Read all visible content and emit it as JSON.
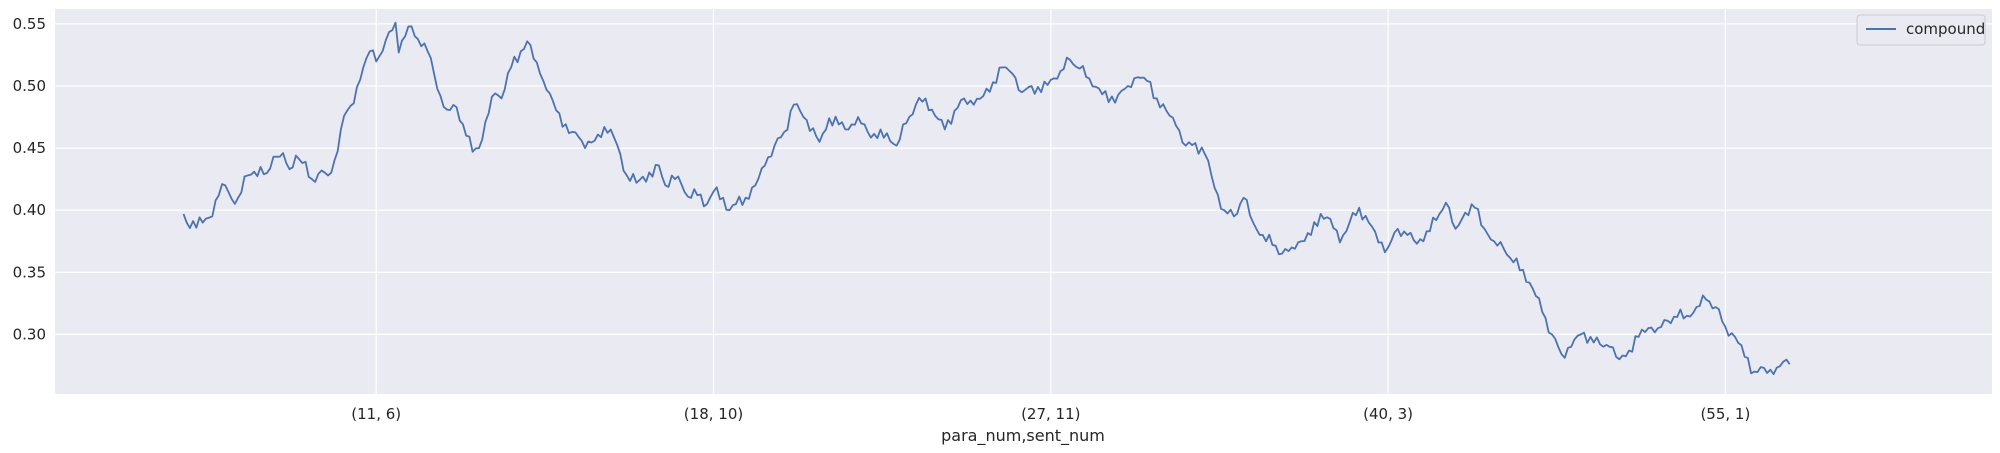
{
  "chart_data": {
    "type": "line",
    "xlabel": "para_num,sent_num",
    "ylabel": "",
    "xlim": [
      -40,
      563
    ],
    "ylim": [
      0.252,
      0.562
    ],
    "x_ticks": [
      {
        "pos": 60,
        "label": "(11, 6)"
      },
      {
        "pos": 165,
        "label": "(18, 10)"
      },
      {
        "pos": 270,
        "label": "(27, 11)"
      },
      {
        "pos": 375,
        "label": "(40, 3)"
      },
      {
        "pos": 480,
        "label": "(55, 1)"
      }
    ],
    "y_ticks": [
      0.3,
      0.35,
      0.4,
      0.45,
      0.5,
      0.55
    ],
    "y_tick_labels": [
      "0.30",
      "0.35",
      "0.40",
      "0.45",
      "0.50",
      "0.55"
    ],
    "grid": true,
    "legend_position": "top-right",
    "colors": {
      "series": "#4c72b0",
      "background": "#eaeaf2",
      "grid": "#ffffff"
    },
    "series": [
      {
        "name": "compound",
        "keypoints": [
          [
            0,
            0.397
          ],
          [
            1,
            0.39
          ],
          [
            6,
            0.39
          ],
          [
            8,
            0.394
          ],
          [
            11,
            0.412
          ],
          [
            13,
            0.42
          ],
          [
            15,
            0.409
          ],
          [
            17,
            0.41
          ],
          [
            20,
            0.428
          ],
          [
            22,
            0.431
          ],
          [
            26,
            0.43
          ],
          [
            28,
            0.443
          ],
          [
            31,
            0.446
          ],
          [
            33,
            0.433
          ],
          [
            35,
            0.444
          ],
          [
            37,
            0.438
          ],
          [
            40,
            0.425
          ],
          [
            43,
            0.432
          ],
          [
            45,
            0.428
          ],
          [
            47,
            0.44
          ],
          [
            50,
            0.476
          ],
          [
            52,
            0.484
          ],
          [
            55,
            0.505
          ],
          [
            58,
            0.528
          ],
          [
            61,
            0.524
          ],
          [
            63,
            0.537
          ],
          [
            66,
            0.551
          ],
          [
            67,
            0.527
          ],
          [
            69,
            0.54
          ],
          [
            71,
            0.548
          ],
          [
            74,
            0.532
          ],
          [
            76,
            0.528
          ],
          [
            78,
            0.51
          ],
          [
            80,
            0.492
          ],
          [
            82,
            0.481
          ],
          [
            85,
            0.483
          ],
          [
            88,
            0.46
          ],
          [
            90,
            0.447
          ],
          [
            92,
            0.45
          ],
          [
            95,
            0.478
          ],
          [
            97,
            0.494
          ],
          [
            99,
            0.49
          ],
          [
            102,
            0.515
          ],
          [
            105,
            0.528
          ],
          [
            107,
            0.536
          ],
          [
            109,
            0.522
          ],
          [
            111,
            0.51
          ],
          [
            113,
            0.497
          ],
          [
            115,
            0.488
          ],
          [
            117,
            0.478
          ],
          [
            120,
            0.462
          ],
          [
            123,
            0.459
          ],
          [
            125,
            0.45
          ],
          [
            128,
            0.456
          ],
          [
            131,
            0.467
          ],
          [
            133,
            0.465
          ],
          [
            136,
            0.445
          ],
          [
            138,
            0.428
          ],
          [
            141,
            0.422
          ],
          [
            143,
            0.427
          ],
          [
            146,
            0.427
          ],
          [
            148,
            0.436
          ],
          [
            150,
            0.42
          ],
          [
            153,
            0.425
          ],
          [
            155,
            0.421
          ],
          [
            157,
            0.411
          ],
          [
            160,
            0.412
          ],
          [
            163,
            0.405
          ],
          [
            165,
            0.415
          ],
          [
            168,
            0.41
          ],
          [
            170,
            0.4
          ],
          [
            172,
            0.405
          ],
          [
            175,
            0.41
          ],
          [
            178,
            0.42
          ],
          [
            181,
            0.436
          ],
          [
            184,
            0.452
          ],
          [
            187,
            0.463
          ],
          [
            190,
            0.485
          ],
          [
            193,
            0.475
          ],
          [
            196,
            0.466
          ],
          [
            198,
            0.455
          ],
          [
            201,
            0.474
          ],
          [
            204,
            0.469
          ],
          [
            207,
            0.465
          ],
          [
            210,
            0.475
          ],
          [
            213,
            0.463
          ],
          [
            216,
            0.458
          ],
          [
            219,
            0.462
          ],
          [
            222,
            0.452
          ],
          [
            225,
            0.47
          ],
          [
            228,
            0.485
          ],
          [
            231,
            0.49
          ],
          [
            234,
            0.476
          ],
          [
            237,
            0.465
          ],
          [
            240,
            0.48
          ],
          [
            243,
            0.49
          ],
          [
            246,
            0.485
          ],
          [
            249,
            0.492
          ],
          [
            252,
            0.503
          ],
          [
            255,
            0.515
          ],
          [
            258,
            0.51
          ],
          [
            261,
            0.495
          ],
          [
            264,
            0.5
          ],
          [
            267,
            0.495
          ],
          [
            270,
            0.505
          ],
          [
            273,
            0.512
          ],
          [
            276,
            0.521
          ],
          [
            279,
            0.514
          ],
          [
            282,
            0.506
          ],
          [
            285,
            0.498
          ],
          [
            288,
            0.487
          ],
          [
            291,
            0.493
          ],
          [
            294,
            0.5
          ],
          [
            297,
            0.507
          ],
          [
            300,
            0.504
          ],
          [
            303,
            0.49
          ],
          [
            306,
            0.48
          ],
          [
            309,
            0.468
          ],
          [
            312,
            0.452
          ],
          [
            315,
            0.454
          ],
          [
            318,
            0.445
          ],
          [
            321,
            0.418
          ],
          [
            324,
            0.4
          ],
          [
            327,
            0.395
          ],
          [
            330,
            0.41
          ],
          [
            333,
            0.39
          ],
          [
            336,
            0.38
          ],
          [
            339,
            0.372
          ],
          [
            342,
            0.365
          ],
          [
            345,
            0.37
          ],
          [
            348,
            0.375
          ],
          [
            351,
            0.38
          ],
          [
            354,
            0.397
          ],
          [
            357,
            0.393
          ],
          [
            360,
            0.374
          ],
          [
            363,
            0.39
          ],
          [
            366,
            0.402
          ],
          [
            369,
            0.39
          ],
          [
            372,
            0.374
          ],
          [
            375,
            0.37
          ],
          [
            378,
            0.385
          ],
          [
            381,
            0.38
          ],
          [
            384,
            0.373
          ],
          [
            387,
            0.383
          ],
          [
            390,
            0.392
          ],
          [
            393,
            0.406
          ],
          [
            396,
            0.385
          ],
          [
            399,
            0.398
          ],
          [
            402,
            0.402
          ],
          [
            405,
            0.385
          ],
          [
            408,
            0.375
          ],
          [
            411,
            0.369
          ],
          [
            414,
            0.358
          ],
          [
            417,
            0.352
          ],
          [
            420,
            0.337
          ],
          [
            423,
            0.318
          ],
          [
            426,
            0.3
          ],
          [
            429,
            0.284
          ],
          [
            432,
            0.29
          ],
          [
            435,
            0.3
          ],
          [
            438,
            0.298
          ],
          [
            441,
            0.292
          ],
          [
            444,
            0.29
          ],
          [
            447,
            0.28
          ],
          [
            450,
            0.287
          ],
          [
            453,
            0.298
          ],
          [
            456,
            0.305
          ],
          [
            459,
            0.305
          ],
          [
            462,
            0.311
          ],
          [
            465,
            0.314
          ],
          [
            468,
            0.315
          ],
          [
            471,
            0.322
          ],
          [
            474,
            0.328
          ],
          [
            477,
            0.322
          ],
          [
            480,
            0.306
          ],
          [
            483,
            0.298
          ],
          [
            486,
            0.282
          ],
          [
            489,
            0.27
          ],
          [
            492,
            0.273
          ],
          [
            495,
            0.268
          ],
          [
            498,
            0.278
          ],
          [
            500,
            0.276
          ]
        ]
      }
    ]
  }
}
